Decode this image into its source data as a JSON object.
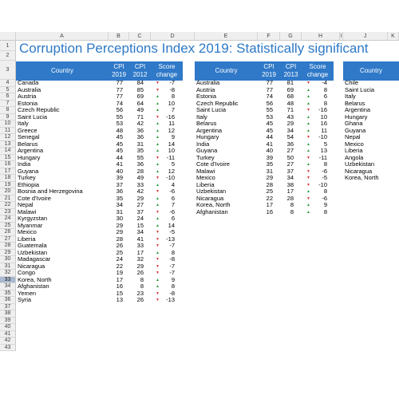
{
  "title": "Corruption Perceptions Index 2019: Statistically significant",
  "column_letters": [
    "A",
    "B",
    "C",
    "D",
    "E",
    "F",
    "G",
    "H",
    "I",
    "J",
    "K"
  ],
  "row_numbers": [
    "1",
    "2",
    "3",
    "4",
    "5",
    "6",
    "7",
    "8",
    "9",
    "10",
    "11",
    "12",
    "13",
    "14",
    "15",
    "16",
    "17",
    "18",
    "19",
    "20",
    "21",
    "22",
    "23",
    "24",
    "25",
    "26",
    "27",
    "28",
    "29",
    "30",
    "31",
    "32",
    "33",
    "34",
    "35",
    "36",
    "37",
    "38",
    "39",
    "40",
    "41",
    "42",
    "43"
  ],
  "selected_row": "33",
  "headers": {
    "country": "Country",
    "cpi2019_top": "CPI",
    "cpi2019_bottom": "2019",
    "cpi2012_top": "CPI",
    "cpi2012_bottom": "2012",
    "cpi2013_top": "CPI",
    "cpi2013_bottom": "2013",
    "score_top": "Score",
    "score_bottom": "change"
  },
  "table1": [
    {
      "country": "Canada",
      "cpi19": "77",
      "cpi_old": "84",
      "dir": "down",
      "change": "-7"
    },
    {
      "country": "Australia",
      "cpi19": "77",
      "cpi_old": "85",
      "dir": "down",
      "change": "-8"
    },
    {
      "country": "Austria",
      "cpi19": "77",
      "cpi_old": "69",
      "dir": "up",
      "change": "8"
    },
    {
      "country": "Estonia",
      "cpi19": "74",
      "cpi_old": "64",
      "dir": "up",
      "change": "10"
    },
    {
      "country": "Czech Republic",
      "cpi19": "56",
      "cpi_old": "49",
      "dir": "up",
      "change": "7"
    },
    {
      "country": "Saint Lucia",
      "cpi19": "55",
      "cpi_old": "71",
      "dir": "down",
      "change": "-16"
    },
    {
      "country": "Italy",
      "cpi19": "53",
      "cpi_old": "42",
      "dir": "up",
      "change": "11"
    },
    {
      "country": "Greece",
      "cpi19": "48",
      "cpi_old": "36",
      "dir": "up",
      "change": "12"
    },
    {
      "country": "Senegal",
      "cpi19": "45",
      "cpi_old": "36",
      "dir": "up",
      "change": "9"
    },
    {
      "country": "Belarus",
      "cpi19": "45",
      "cpi_old": "31",
      "dir": "up",
      "change": "14"
    },
    {
      "country": "Argentina",
      "cpi19": "45",
      "cpi_old": "35",
      "dir": "up",
      "change": "10"
    },
    {
      "country": "Hungary",
      "cpi19": "44",
      "cpi_old": "55",
      "dir": "down",
      "change": "-11"
    },
    {
      "country": "India",
      "cpi19": "41",
      "cpi_old": "36",
      "dir": "up",
      "change": "5"
    },
    {
      "country": "Guyana",
      "cpi19": "40",
      "cpi_old": "28",
      "dir": "up",
      "change": "12"
    },
    {
      "country": "Turkey",
      "cpi19": "39",
      "cpi_old": "49",
      "dir": "down",
      "change": "-10"
    },
    {
      "country": "Ethiopia",
      "cpi19": "37",
      "cpi_old": "33",
      "dir": "up",
      "change": "4"
    },
    {
      "country": "Bosnia and Herzegovina",
      "cpi19": "36",
      "cpi_old": "42",
      "dir": "down",
      "change": "-6"
    },
    {
      "country": "Cote d'Ivoire",
      "cpi19": "35",
      "cpi_old": "29",
      "dir": "up",
      "change": "6"
    },
    {
      "country": "Nepal",
      "cpi19": "34",
      "cpi_old": "27",
      "dir": "up",
      "change": "7"
    },
    {
      "country": "Malawi",
      "cpi19": "31",
      "cpi_old": "37",
      "dir": "down",
      "change": "-6"
    },
    {
      "country": "Kyrgyzstan",
      "cpi19": "30",
      "cpi_old": "24",
      "dir": "up",
      "change": "6"
    },
    {
      "country": "Myanmar",
      "cpi19": "29",
      "cpi_old": "15",
      "dir": "up",
      "change": "14"
    },
    {
      "country": "Mexico",
      "cpi19": "29",
      "cpi_old": "34",
      "dir": "down",
      "change": "-5"
    },
    {
      "country": "Liberia",
      "cpi19": "28",
      "cpi_old": "41",
      "dir": "down",
      "change": "-13"
    },
    {
      "country": "Guatemala",
      "cpi19": "26",
      "cpi_old": "33",
      "dir": "down",
      "change": "-7"
    },
    {
      "country": "Uzbekistan",
      "cpi19": "25",
      "cpi_old": "17",
      "dir": "up",
      "change": "8"
    },
    {
      "country": "Madagascar",
      "cpi19": "24",
      "cpi_old": "32",
      "dir": "down",
      "change": "-8"
    },
    {
      "country": "Nicaragua",
      "cpi19": "22",
      "cpi_old": "29",
      "dir": "down",
      "change": "-7"
    },
    {
      "country": "Congo",
      "cpi19": "19",
      "cpi_old": "26",
      "dir": "down",
      "change": "-7"
    },
    {
      "country": "Korea, North",
      "cpi19": "17",
      "cpi_old": "8",
      "dir": "up",
      "change": "9"
    },
    {
      "country": "Afghanistan",
      "cpi19": "16",
      "cpi_old": "8",
      "dir": "up",
      "change": "8"
    },
    {
      "country": "Yemen",
      "cpi19": "15",
      "cpi_old": "23",
      "dir": "down",
      "change": "-8"
    },
    {
      "country": "Syria",
      "cpi19": "13",
      "cpi_old": "26",
      "dir": "down",
      "change": "-13"
    }
  ],
  "table2": [
    {
      "country": "Australia",
      "cpi19": "77",
      "cpi_old": "81",
      "dir": "down",
      "change": "-4"
    },
    {
      "country": "Austria",
      "cpi19": "77",
      "cpi_old": "69",
      "dir": "up",
      "change": "8"
    },
    {
      "country": "Estonia",
      "cpi19": "74",
      "cpi_old": "68",
      "dir": "up",
      "change": "6"
    },
    {
      "country": "Czech Republic",
      "cpi19": "56",
      "cpi_old": "48",
      "dir": "up",
      "change": "8"
    },
    {
      "country": "Saint Lucia",
      "cpi19": "55",
      "cpi_old": "71",
      "dir": "down",
      "change": "-16"
    },
    {
      "country": "Italy",
      "cpi19": "53",
      "cpi_old": "43",
      "dir": "up",
      "change": "10"
    },
    {
      "country": "Belarus",
      "cpi19": "45",
      "cpi_old": "29",
      "dir": "up",
      "change": "16"
    },
    {
      "country": "Argentina",
      "cpi19": "45",
      "cpi_old": "34",
      "dir": "up",
      "change": "11"
    },
    {
      "country": "Hungary",
      "cpi19": "44",
      "cpi_old": "54",
      "dir": "down",
      "change": "-10"
    },
    {
      "country": "India",
      "cpi19": "41",
      "cpi_old": "36",
      "dir": "up",
      "change": "5"
    },
    {
      "country": "Guyana",
      "cpi19": "40",
      "cpi_old": "27",
      "dir": "up",
      "change": "13"
    },
    {
      "country": "Turkey",
      "cpi19": "39",
      "cpi_old": "50",
      "dir": "down",
      "change": "-11"
    },
    {
      "country": "Cote d'Ivoire",
      "cpi19": "35",
      "cpi_old": "27",
      "dir": "up",
      "change": "8"
    },
    {
      "country": "Malawi",
      "cpi19": "31",
      "cpi_old": "37",
      "dir": "down",
      "change": "-6"
    },
    {
      "country": "Mexico",
      "cpi19": "29",
      "cpi_old": "34",
      "dir": "down",
      "change": "-5"
    },
    {
      "country": "Liberia",
      "cpi19": "28",
      "cpi_old": "38",
      "dir": "down",
      "change": "-10"
    },
    {
      "country": "Uzbekistan",
      "cpi19": "25",
      "cpi_old": "17",
      "dir": "up",
      "change": "8"
    },
    {
      "country": "Nicaragua",
      "cpi19": "22",
      "cpi_old": "28",
      "dir": "down",
      "change": "-6"
    },
    {
      "country": "Korea, North",
      "cpi19": "17",
      "cpi_old": "8",
      "dir": "up",
      "change": "9"
    },
    {
      "country": "Afghanistan",
      "cpi19": "16",
      "cpi_old": "8",
      "dir": "up",
      "change": "8"
    }
  ],
  "table3": [
    "Chile",
    "Saint Lucia",
    "Italy",
    "Belarus",
    "Argentina",
    "Hungary",
    "Ghana",
    "Guyana",
    "Nepal",
    "Mexico",
    "Liberia",
    "Angola",
    "Uzbekistan",
    "Nicaragua",
    "Korea, North"
  ],
  "colors": {
    "header_blue": "#2f79c8",
    "title_blue": "#2d79c7",
    "arrow_down": "#d23a3a",
    "arrow_up": "#2c9a3c"
  }
}
